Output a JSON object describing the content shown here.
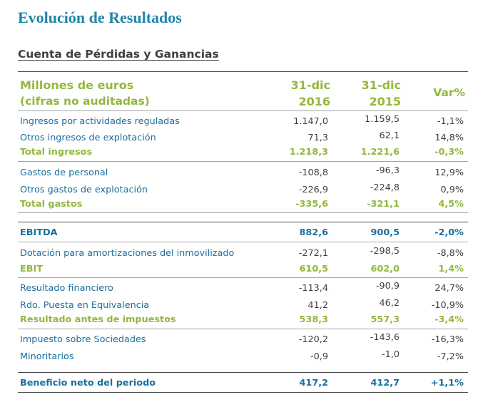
{
  "title": "Evolución de Resultados",
  "subtitle": "Cuenta de Pérdidas y Ganancias",
  "header": {
    "line1": "Millones de euros",
    "line2": "(cifras no auditadas)",
    "col1_line1": "31-dic",
    "col1_line2": "2016",
    "col2_line1": "31-dic",
    "col2_line2": "2015",
    "col3": "Var%"
  },
  "rows": [
    {
      "label": "Ingresos por actividades reguladas",
      "v2016": "1.147,0",
      "v2015": "1.159,5",
      "var": "-1,1%"
    },
    {
      "label": "Otros ingresos de explotación",
      "v2016": "71,3",
      "v2015": "62,1",
      "var": "14,8%"
    },
    {
      "label": "Total ingresos",
      "v2016": "1.218,3",
      "v2015": "1.221,6",
      "var": "-0,3%"
    },
    {
      "label": "Gastos de personal",
      "v2016": "-108,8",
      "v2015": "-96,3",
      "var": "12,9%"
    },
    {
      "label": "Otros gastos de explotación",
      "v2016": "-226,9",
      "v2015": "-224,8",
      "var": "0,9%"
    },
    {
      "label": "Total gastos",
      "v2016": "-335,6",
      "v2015": "-321,1",
      "var": "4,5%"
    },
    {
      "label": "EBITDA",
      "v2016": "882,6",
      "v2015": "900,5",
      "var": "-2,0%"
    },
    {
      "label": "Dotación para amortizaciones del inmovilizado",
      "v2016": "-272,1",
      "v2015": "-298,5",
      "var": "-8,8%"
    },
    {
      "label": "EBIT",
      "v2016": "610,5",
      "v2015": "602,0",
      "var": "1,4%"
    },
    {
      "label": "Resultado financiero",
      "v2016": "-113,4",
      "v2015": "-90,9",
      "var": "24,7%"
    },
    {
      "label": "Rdo. Puesta en Equivalencia",
      "v2016": "41,2",
      "v2015": "46,2",
      "var": "-10,9%"
    },
    {
      "label": "Resultado antes de impuestos",
      "v2016": "538,3",
      "v2015": "557,3",
      "var": "-3,4%"
    },
    {
      "label": "Impuesto sobre Sociedades",
      "v2016": "-120,2",
      "v2015": "-143,6",
      "var": "-16,3%"
    },
    {
      "label": "Minoritarios",
      "v2016": "-0,9",
      "v2015": "-1,0",
      "var": "-7,2%"
    },
    {
      "label": "Beneficio neto del periodo",
      "v2016": "417,2",
      "v2015": "412,7",
      "var": "+1,1%"
    }
  ]
}
